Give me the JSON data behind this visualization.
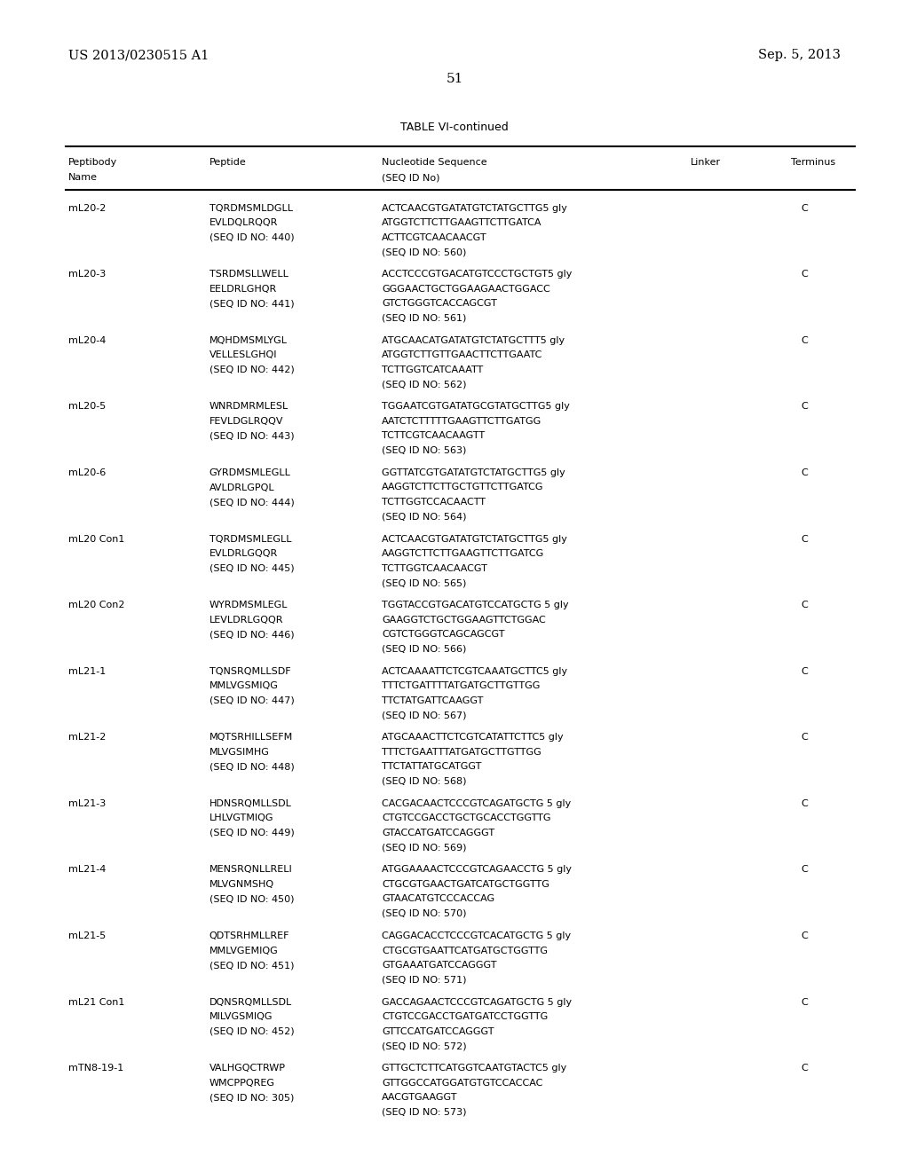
{
  "header_left": "US 2013/0230515 A1",
  "header_right": "Sep. 5, 2013",
  "page_number": "51",
  "table_title": "TABLE VI-continued",
  "rows": [
    {
      "name": "mL20-2",
      "peptide": [
        "TQRDMSMLDGLL",
        "EVLDQLRQQR",
        "(SEQ ID NO: 440)"
      ],
      "nucleotide": [
        "ACTCAACGTGATATGTCTATGCTTG5 gly",
        "ATGGTCTTCTTGAAGTTCTTGATCA",
        "ACTTCGTCAACAACGT",
        "(SEQ ID NO: 560)"
      ],
      "terminus": "C"
    },
    {
      "name": "mL20-3",
      "peptide": [
        "TSRDMSLLWELL",
        "EELDRLGHQR",
        "(SEQ ID NO: 441)"
      ],
      "nucleotide": [
        "ACCTCCCGTGACATGTCCCTGCTGT5 gly",
        "GGGAACTGCTGGAAGAACTGGACC",
        "GTCTGGGTCACCAGCGT",
        "(SEQ ID NO: 561)"
      ],
      "terminus": "C"
    },
    {
      "name": "mL20-4",
      "peptide": [
        "MQHDMSMLYGL",
        "VELLESLGHQI",
        "(SEQ ID NO: 442)"
      ],
      "nucleotide": [
        "ATGCAACATGATATGTCTATGCTTT5 gly",
        "ATGGTCTTGTTGAACTTCTTGAATC",
        "TCTTGGTCATCAAATT",
        "(SEQ ID NO: 562)"
      ],
      "terminus": "C"
    },
    {
      "name": "mL20-5",
      "peptide": [
        "WNRDMRMLESL",
        "FEVLDGLRQQV",
        "(SEQ ID NO: 443)"
      ],
      "nucleotide": [
        "TGGAATCGTGATATGCGTATGCTTG5 gly",
        "AATCTCTTTTTGAAGTTCTTGATGG",
        "TCTTCGTCAACAAGTT",
        "(SEQ ID NO: 563)"
      ],
      "terminus": "C"
    },
    {
      "name": "mL20-6",
      "peptide": [
        "GYRDMSMLEGLL",
        "AVLDRLGPQL",
        "(SEQ ID NO: 444)"
      ],
      "nucleotide": [
        "GGTTATCGTGATATGTCTATGCTTG5 gly",
        "AAGGTCTTCTTGCTGTTCTTGATCG",
        "TCTTGGTCCACAACTT",
        "(SEQ ID NO: 564)"
      ],
      "terminus": "C"
    },
    {
      "name": "mL20 Con1",
      "peptide": [
        "TQRDMSMLEGLL",
        "EVLDRLGQQR",
        "(SEQ ID NO: 445)"
      ],
      "nucleotide": [
        "ACTCAACGTGATATGTCTATGCTTG5 gly",
        "AAGGTCTTCTTGAAGTTCTTGATCG",
        "TCTTGGTCAACAACGT",
        "(SEQ ID NO: 565)"
      ],
      "terminus": "C"
    },
    {
      "name": "mL20 Con2",
      "peptide": [
        "WYRDMSMLEGL",
        "LEVLDRLGQQR",
        "(SEQ ID NO: 446)"
      ],
      "nucleotide": [
        "TGGTACCGTGACATGTCCATGCTG 5 gly",
        "GAAGGTCTGCTGGAAGTTCTGGAC",
        "CGTCTGGGTCAGCAGCGT",
        "(SEQ ID NO: 566)"
      ],
      "terminus": "C"
    },
    {
      "name": "mL21-1",
      "peptide": [
        "TQNSRQMLLSDF",
        "MMLVGSMIQG",
        "(SEQ ID NO: 447)"
      ],
      "nucleotide": [
        "ACTCAAAATTCTCGTCAAATGCTTC5 gly",
        "TTTCTGATTTTATGATGCTTGTTGG",
        "TTCTATGATTCAAGGT",
        "(SEQ ID NO: 567)"
      ],
      "terminus": "C"
    },
    {
      "name": "mL21-2",
      "peptide": [
        "MQTSRHILLSEFM",
        "MLVGSIMHG",
        "(SEQ ID NO: 448)"
      ],
      "nucleotide": [
        "ATGCAAACTTCTCGTCATATTCTTC5 gly",
        "TTTCTGAATTTATGATGCTTGTTGG",
        "TTCTATTATGCATGGT",
        "(SEQ ID NO: 568)"
      ],
      "terminus": "C"
    },
    {
      "name": "mL21-3",
      "peptide": [
        "HDNSRQMLLSDL",
        "LHLVGTMIQG",
        "(SEQ ID NO: 449)"
      ],
      "nucleotide": [
        "CACGACAACTCCCGTCAGATGCTG 5 gly",
        "CTGTCCGACCTGCTGCACCTGGTTG",
        "GTACCATGATCCAGGGT",
        "(SEQ ID NO: 569)"
      ],
      "terminus": "C"
    },
    {
      "name": "mL21-4",
      "peptide": [
        "MENSRQNLLRELI",
        "MLVGNMSHQ",
        "(SEQ ID NO: 450)"
      ],
      "nucleotide": [
        "ATGGAAAACTCCCGTCAGAACCTG 5 gly",
        "CTGCGTGAACTGATCATGCTGGTTG",
        "GTAACATGTCCCACCAG",
        "(SEQ ID NO: 570)"
      ],
      "terminus": "C"
    },
    {
      "name": "mL21-5",
      "peptide": [
        "QDTSRHMLLREF",
        "MMLVGEMIQG",
        "(SEQ ID NO: 451)"
      ],
      "nucleotide": [
        "CAGGACACCTCCCGTCACATGCTG 5 gly",
        "CTGCGTGAATTCATGATGCTGGTTG",
        "GTGAAATGATCCAGGGT",
        "(SEQ ID NO: 571)"
      ],
      "terminus": "C"
    },
    {
      "name": "mL21 Con1",
      "peptide": [
        "DQNSRQMLLSDL",
        "MILVGSMIQG",
        "(SEQ ID NO: 452)"
      ],
      "nucleotide": [
        "GACCAGAACTCCCGTCAGATGCTG 5 gly",
        "CTGTCCGACCTGATGATCCTGGTTG",
        "GTTCCATGATCCAGGGT",
        "(SEQ ID NO: 572)"
      ],
      "terminus": "C"
    },
    {
      "name": "mTN8-19-1",
      "peptide": [
        "VALHGQCTRWP",
        "WMCPPQREG",
        "(SEQ ID NO: 305)"
      ],
      "nucleotide": [
        "GTTGCTCTTCATGGTCAATGTACTC5 gly",
        "GTTGGCCATGGATGTGTCCACCAC",
        "AACGTGAAGGT",
        "(SEQ ID NO: 573)"
      ],
      "terminus": "C"
    }
  ],
  "bg_color": "#ffffff",
  "text_color": "#000000"
}
